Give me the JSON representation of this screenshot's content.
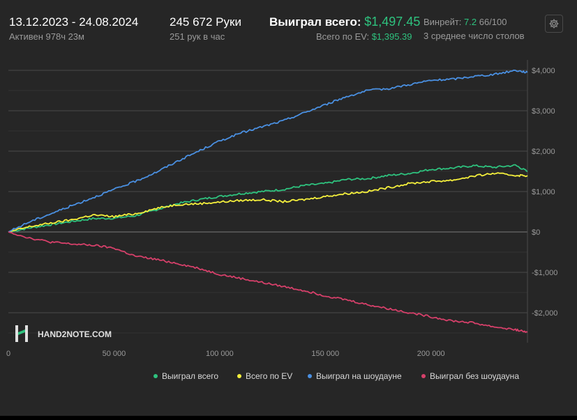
{
  "header": {
    "date_range": "13.12.2023 - 24.08.2024",
    "active": "Активен 978ч 23м",
    "hands": "245 672 Руки",
    "hands_per_hour": "251 рук в час",
    "won_total_label": "Выиграл всего:",
    "won_total_value": "$1,497.45",
    "ev_label": "Всего по EV:",
    "ev_value": "$1,395.39",
    "winrate_label": "Винрейт:",
    "winrate_value": "7.2",
    "winrate_rest": "66/100",
    "avg_tables": "3 среднее число столов"
  },
  "watermark": {
    "logo_text": "HAND2NOTE.COM",
    "logo_icon": "h2n-logo-icon"
  },
  "settings": {
    "icon": "gear-icon"
  },
  "colors": {
    "green": "#2ec27e",
    "yellow": "#f5f03c",
    "blue": "#4a90e2",
    "red": "#d6406a"
  },
  "chart_data": {
    "type": "line",
    "xlim": [
      0,
      245672
    ],
    "ylim": [
      -2500,
      4100
    ],
    "x_ticks": [
      0,
      50000,
      100000,
      150000,
      200000
    ],
    "x_tick_labels": [
      "0",
      "50 000",
      "100 000",
      "150 000",
      "200 000"
    ],
    "y_ticks": [
      4000,
      3000,
      2000,
      1000,
      0,
      -1000,
      -2000
    ],
    "y_tick_labels": [
      "$4,000",
      "$3,000",
      "$2,000",
      "$1,000",
      "$0",
      "-$1,000",
      "-$2,000"
    ],
    "legend_position": "bottom-right",
    "series": [
      {
        "name": "Выиграл всего",
        "color": "#2ec27e",
        "x": [
          0,
          10000,
          20000,
          30000,
          40000,
          50000,
          60000,
          70000,
          80000,
          90000,
          100000,
          110000,
          120000,
          130000,
          140000,
          150000,
          160000,
          170000,
          180000,
          190000,
          200000,
          210000,
          220000,
          230000,
          240000,
          245672
        ],
        "y": [
          0,
          100,
          180,
          260,
          330,
          340,
          400,
          550,
          700,
          800,
          880,
          950,
          1000,
          1050,
          1150,
          1200,
          1300,
          1320,
          1400,
          1450,
          1550,
          1580,
          1640,
          1600,
          1650,
          1497
        ]
      },
      {
        "name": "Всего по EV",
        "color": "#f5f03c",
        "x": [
          0,
          10000,
          20000,
          30000,
          40000,
          50000,
          60000,
          70000,
          80000,
          90000,
          100000,
          110000,
          120000,
          130000,
          140000,
          150000,
          160000,
          170000,
          180000,
          190000,
          200000,
          210000,
          220000,
          230000,
          240000,
          245672
        ],
        "y": [
          0,
          130,
          220,
          300,
          420,
          380,
          450,
          580,
          680,
          700,
          740,
          780,
          800,
          750,
          800,
          880,
          950,
          1000,
          1100,
          1200,
          1250,
          1280,
          1380,
          1450,
          1400,
          1395
        ]
      },
      {
        "name": "Выиграл на шоудауне",
        "color": "#4a90e2",
        "x": [
          0,
          10000,
          20000,
          30000,
          40000,
          50000,
          60000,
          70000,
          80000,
          90000,
          100000,
          110000,
          120000,
          130000,
          140000,
          150000,
          160000,
          170000,
          180000,
          190000,
          200000,
          210000,
          220000,
          230000,
          240000,
          245672
        ],
        "y": [
          0,
          250,
          450,
          650,
          850,
          1050,
          1250,
          1480,
          1750,
          2000,
          2250,
          2450,
          2600,
          2750,
          2950,
          3150,
          3350,
          3500,
          3550,
          3650,
          3750,
          3780,
          3850,
          3900,
          4000,
          3950
        ]
      },
      {
        "name": "Выиграл без шоудауна",
        "color": "#d6406a",
        "x": [
          0,
          10000,
          20000,
          30000,
          40000,
          50000,
          60000,
          70000,
          80000,
          90000,
          100000,
          110000,
          120000,
          130000,
          140000,
          150000,
          160000,
          170000,
          180000,
          190000,
          200000,
          210000,
          220000,
          230000,
          240000,
          245672
        ],
        "y": [
          0,
          -150,
          -250,
          -300,
          -330,
          -400,
          -600,
          -680,
          -780,
          -900,
          -1050,
          -1150,
          -1250,
          -1350,
          -1450,
          -1580,
          -1680,
          -1800,
          -1900,
          -2000,
          -2100,
          -2200,
          -2250,
          -2350,
          -2420,
          -2480
        ]
      }
    ]
  }
}
